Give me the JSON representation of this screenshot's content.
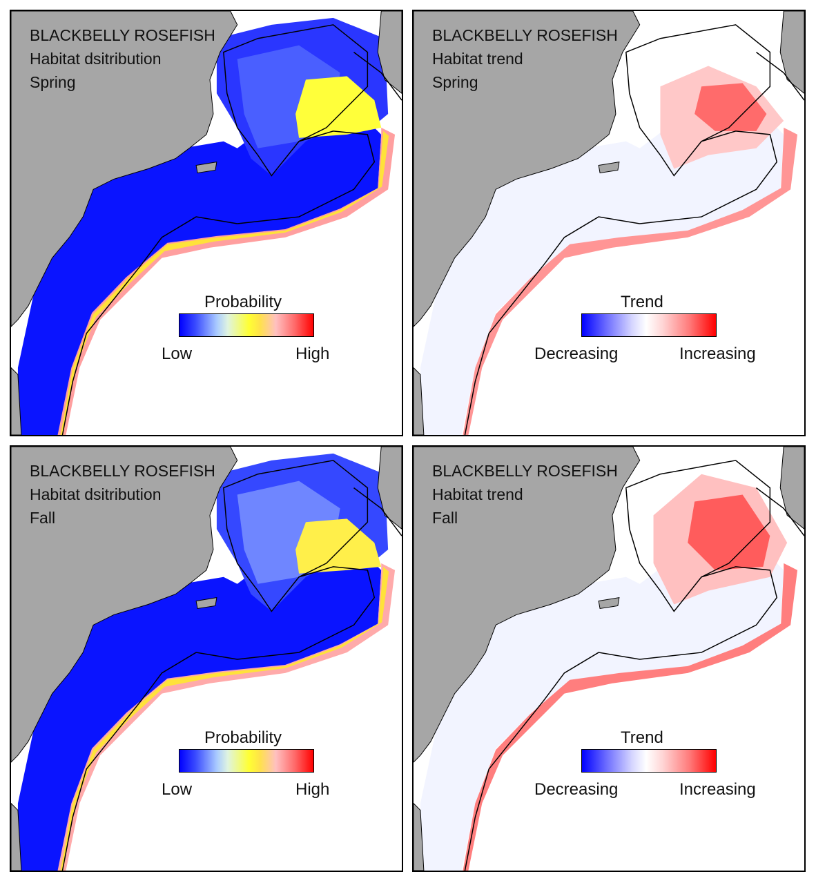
{
  "panels": [
    {
      "species": "BLACKBELLY ROSEFISH",
      "subtitle": "Habitat dsitribution",
      "season": "Spring",
      "legend": {
        "title": "Probability",
        "low": "Low",
        "high": "High",
        "scale": "probability"
      }
    },
    {
      "species": "BLACKBELLY ROSEFISH",
      "subtitle": "Habitat trend",
      "season": "Spring",
      "legend": {
        "title": "Trend",
        "low": "Decreasing",
        "high": "Increasing",
        "scale": "trend"
      }
    },
    {
      "species": "BLACKBELLY ROSEFISH",
      "subtitle": "Habitat dsitribution",
      "season": "Fall",
      "legend": {
        "title": "Probability",
        "low": "Low",
        "high": "High",
        "scale": "probability"
      }
    },
    {
      "species": "BLACKBELLY ROSEFISH",
      "subtitle": "Habitat trend",
      "season": "Fall",
      "legend": {
        "title": "Trend",
        "low": "Decreasing",
        "high": "Increasing",
        "scale": "trend"
      }
    }
  ],
  "colors": {
    "land": "#a6a6a6",
    "ocean": "#ffffff",
    "prob_low": "#0000ff",
    "prob_mid": "#ffff33",
    "prob_high": "#ff0000",
    "trend_decreasing": "#0000ff",
    "trend_increasing": "#ff0000"
  }
}
